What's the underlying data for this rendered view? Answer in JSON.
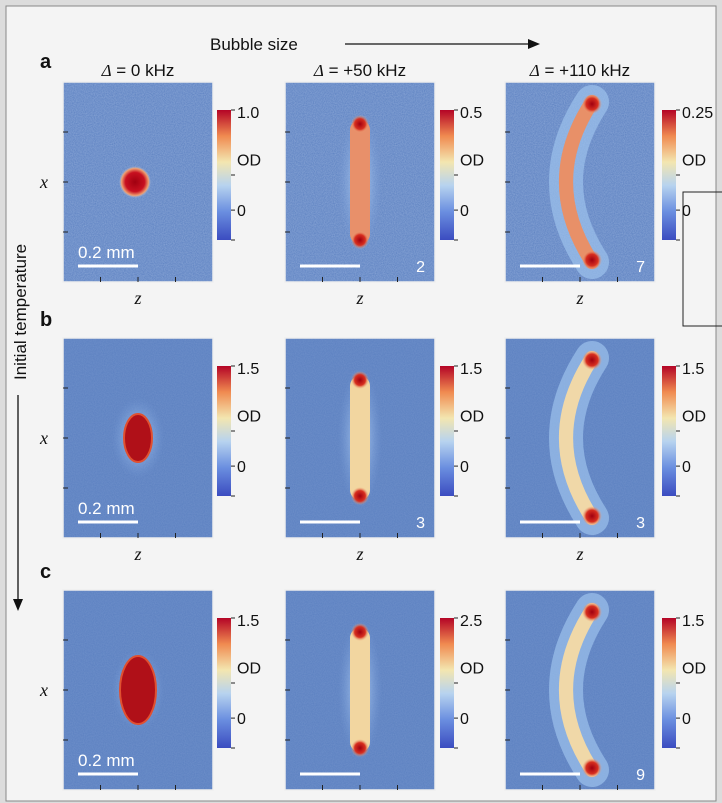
{
  "header": {
    "axis_label": "Bubble size"
  },
  "side_label": "Initial temperature",
  "columns": [
    {
      "title_sym": "Δ",
      "title_val": " = 0 kHz"
    },
    {
      "title_sym": "Δ",
      "title_val": " = +50 kHz"
    },
    {
      "title_sym": "Δ",
      "title_val": " = +110 kHz"
    }
  ],
  "axis": {
    "x": "x",
    "z": "z"
  },
  "scale_bar": "0.2 mm",
  "od_label": "OD",
  "rows": [
    {
      "label": "a",
      "panels": [
        {
          "shape": "dot",
          "cb_max": "1.0",
          "cb_zero": "0",
          "corner": ""
        },
        {
          "shape": "bar",
          "cb_max": "0.5",
          "cb_zero": "0",
          "corner": "2"
        },
        {
          "shape": "arc",
          "cb_max": "0.25",
          "cb_zero": "0",
          "corner": "7"
        }
      ]
    },
    {
      "label": "b",
      "panels": [
        {
          "shape": "oval",
          "cb_max": "1.5",
          "cb_zero": "0",
          "corner": ""
        },
        {
          "shape": "bar",
          "cb_max": "1.5",
          "cb_zero": "0",
          "corner": "3"
        },
        {
          "shape": "arc",
          "cb_max": "1.5",
          "cb_zero": "0",
          "corner": "3"
        }
      ]
    },
    {
      "label": "c",
      "panels": [
        {
          "shape": "oval",
          "cb_max": "1.5",
          "cb_zero": "0",
          "corner": ""
        },
        {
          "shape": "bar",
          "cb_max": "2.5",
          "cb_zero": "0",
          "corner": ""
        },
        {
          "shape": "arc",
          "cb_max": "1.5",
          "cb_zero": "0",
          "corner": "9"
        }
      ]
    }
  ],
  "colors": {
    "background": "#5a7fc0",
    "colormap": [
      "#3b4cc0",
      "#6b8fe0",
      "#b7d3ef",
      "#f3e6b0",
      "#f08a50",
      "#b40426"
    ]
  }
}
